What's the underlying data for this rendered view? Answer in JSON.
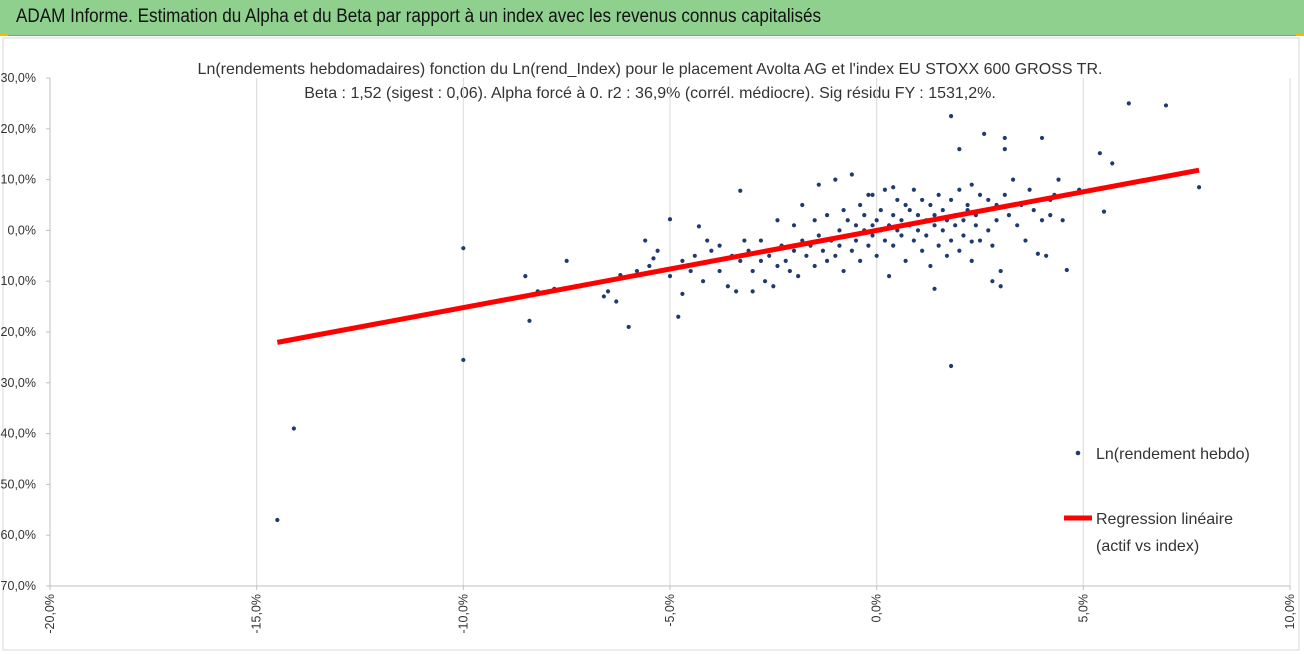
{
  "header": {
    "title": "ADAM Informe. Estimation du Alpha et du Beta par rapport à un index avec les revenus connus capitalisés",
    "accent": "#8fd08f"
  },
  "chart_data": {
    "type": "scatter",
    "title": "Ln(rendements hebdomadaires) fonction du Ln(rend_Index) pour le placement Avolta AG et l'index EU STOXX 600 GROSS TR.",
    "subtitle": "Beta : 1,52 (sigest : 0,06).  Alpha forcé à 0. r2 : 36,9% (corrél. médiocre). Sig résidu FY : 1531,2%.",
    "xlabel": "",
    "ylabel": "",
    "xlim": [
      -0.2,
      0.1
    ],
    "ylim": [
      -0.7,
      0.3
    ],
    "x_ticks": [
      -0.2,
      -0.15,
      -0.1,
      -0.05,
      0.0,
      0.05,
      0.1
    ],
    "x_tick_labels": [
      "-20,0%",
      "-15,0%",
      "-10,0%",
      "-5,0%",
      "0,0%",
      "5,0%",
      "10,0%"
    ],
    "y_ticks": [
      0.3,
      0.2,
      0.1,
      0.0,
      -0.1,
      -0.2,
      -0.3,
      -0.4,
      -0.5,
      -0.6,
      -0.7
    ],
    "y_tick_labels": [
      "30,0%",
      "20,0%",
      "10,0%",
      "0,0%",
      "-10,0%",
      "-20,0%",
      "-30,0%",
      "-40,0%",
      "-50,0%",
      "-60,0%",
      "-70,0%"
    ],
    "grid": "vertical",
    "legend_position": "right",
    "series": [
      {
        "name": "Ln(rendement hebdo)",
        "kind": "scatter",
        "color": "#1f3a6e",
        "points": [
          [
            -0.145,
            -0.57
          ],
          [
            -0.141,
            -0.39
          ],
          [
            -0.1,
            -0.255
          ],
          [
            -0.1,
            -0.035
          ],
          [
            -0.085,
            -0.09
          ],
          [
            -0.084,
            -0.178
          ],
          [
            -0.082,
            -0.12
          ],
          [
            -0.078,
            -0.115
          ],
          [
            -0.075,
            -0.06
          ],
          [
            -0.066,
            -0.13
          ],
          [
            -0.065,
            -0.12
          ],
          [
            -0.063,
            -0.14
          ],
          [
            -0.062,
            -0.088
          ],
          [
            -0.06,
            -0.19
          ],
          [
            -0.058,
            -0.08
          ],
          [
            -0.056,
            -0.02
          ],
          [
            -0.055,
            -0.07
          ],
          [
            -0.054,
            -0.055
          ],
          [
            -0.053,
            -0.04
          ],
          [
            -0.05,
            -0.09
          ],
          [
            -0.05,
            0.022
          ],
          [
            -0.048,
            -0.17
          ],
          [
            -0.047,
            -0.06
          ],
          [
            -0.047,
            -0.125
          ],
          [
            -0.045,
            -0.08
          ],
          [
            -0.044,
            -0.05
          ],
          [
            -0.043,
            0.008
          ],
          [
            -0.042,
            -0.1
          ],
          [
            -0.041,
            -0.02
          ],
          [
            -0.04,
            -0.06
          ],
          [
            -0.04,
            -0.04
          ],
          [
            -0.038,
            -0.03
          ],
          [
            -0.038,
            -0.08
          ],
          [
            -0.036,
            -0.11
          ],
          [
            -0.035,
            -0.05
          ],
          [
            -0.034,
            -0.12
          ],
          [
            -0.033,
            -0.06
          ],
          [
            -0.033,
            0.078
          ],
          [
            -0.032,
            -0.02
          ],
          [
            -0.031,
            -0.04
          ],
          [
            -0.03,
            -0.08
          ],
          [
            -0.03,
            -0.12
          ],
          [
            -0.028,
            -0.06
          ],
          [
            -0.028,
            -0.02
          ],
          [
            -0.027,
            -0.1
          ],
          [
            -0.026,
            -0.05
          ],
          [
            -0.025,
            -0.11
          ],
          [
            -0.024,
            0.02
          ],
          [
            -0.024,
            -0.07
          ],
          [
            -0.023,
            -0.03
          ],
          [
            -0.022,
            -0.06
          ],
          [
            -0.021,
            -0.08
          ],
          [
            -0.02,
            0.01
          ],
          [
            -0.02,
            -0.04
          ],
          [
            -0.019,
            -0.09
          ],
          [
            -0.018,
            -0.02
          ],
          [
            -0.018,
            0.05
          ],
          [
            -0.017,
            -0.05
          ],
          [
            -0.016,
            -0.03
          ],
          [
            -0.015,
            -0.07
          ],
          [
            -0.015,
            0.02
          ],
          [
            -0.014,
            0.09
          ],
          [
            -0.014,
            -0.01
          ],
          [
            -0.013,
            -0.04
          ],
          [
            -0.012,
            -0.06
          ],
          [
            -0.012,
            0.03
          ],
          [
            -0.011,
            -0.02
          ],
          [
            -0.01,
            0.1
          ],
          [
            -0.01,
            -0.05
          ],
          [
            -0.009,
            0.0
          ],
          [
            -0.009,
            -0.03
          ],
          [
            -0.008,
            0.04
          ],
          [
            -0.008,
            -0.08
          ],
          [
            -0.007,
            -0.01
          ],
          [
            -0.007,
            0.02
          ],
          [
            -0.006,
            0.11
          ],
          [
            -0.006,
            -0.04
          ],
          [
            -0.005,
            0.01
          ],
          [
            -0.005,
            -0.02
          ],
          [
            -0.004,
            0.05
          ],
          [
            -0.004,
            -0.06
          ],
          [
            -0.003,
            0.0
          ],
          [
            -0.003,
            0.03
          ],
          [
            -0.002,
            -0.03
          ],
          [
            -0.002,
            0.07
          ],
          [
            -0.001,
            0.01
          ],
          [
            -0.001,
            -0.01
          ],
          [
            0.0,
            0.02
          ],
          [
            0.0,
            -0.05
          ],
          [
            0.001,
            0.0
          ],
          [
            0.001,
            0.04
          ],
          [
            0.002,
            -0.02
          ],
          [
            0.002,
            0.08
          ],
          [
            0.003,
            0.01
          ],
          [
            0.003,
            -0.09
          ],
          [
            0.004,
            0.03
          ],
          [
            0.004,
            -0.03
          ],
          [
            0.005,
            0.06
          ],
          [
            0.005,
            0.0
          ],
          [
            0.006,
            -0.01
          ],
          [
            0.006,
            0.02
          ],
          [
            0.007,
            0.05
          ],
          [
            0.007,
            -0.06
          ],
          [
            0.008,
            0.01
          ],
          [
            0.008,
            0.04
          ],
          [
            0.009,
            -0.02
          ],
          [
            0.009,
            0.08
          ],
          [
            0.01,
            0.0
          ],
          [
            0.01,
            0.03
          ],
          [
            0.011,
            -0.04
          ],
          [
            0.011,
            0.06
          ],
          [
            0.012,
            0.02
          ],
          [
            0.012,
            -0.01
          ],
          [
            0.013,
            0.05
          ],
          [
            0.013,
            -0.07
          ],
          [
            0.014,
            0.01
          ],
          [
            0.014,
            0.03
          ],
          [
            0.015,
            -0.03
          ],
          [
            0.015,
            0.07
          ],
          [
            0.016,
            0.0
          ],
          [
            0.016,
            0.04
          ],
          [
            0.017,
            -0.05
          ],
          [
            0.017,
            0.02
          ],
          [
            0.018,
            0.06
          ],
          [
            0.018,
            -0.02
          ],
          [
            0.019,
            0.01
          ],
          [
            0.019,
            0.03
          ],
          [
            0.02,
            -0.04
          ],
          [
            0.02,
            0.08
          ],
          [
            0.021,
            0.02
          ],
          [
            0.021,
            -0.01
          ],
          [
            0.022,
            0.05
          ],
          [
            0.022,
            0.04
          ],
          [
            0.023,
            -0.06
          ],
          [
            0.023,
            0.09
          ],
          [
            0.024,
            0.01
          ],
          [
            0.024,
            0.03
          ],
          [
            0.025,
            -0.02
          ],
          [
            0.025,
            0.07
          ],
          [
            0.026,
            0.04
          ],
          [
            0.027,
            0.0
          ],
          [
            0.027,
            0.06
          ],
          [
            0.028,
            -0.03
          ],
          [
            0.029,
            0.05
          ],
          [
            0.029,
            0.02
          ],
          [
            0.03,
            -0.08
          ],
          [
            0.031,
            0.07
          ],
          [
            0.032,
            0.03
          ],
          [
            0.033,
            0.1
          ],
          [
            0.034,
            0.01
          ],
          [
            0.035,
            0.05
          ],
          [
            0.036,
            -0.02
          ],
          [
            0.037,
            0.08
          ],
          [
            0.038,
            0.04
          ],
          [
            0.04,
            0.06
          ],
          [
            0.041,
            -0.05
          ],
          [
            0.042,
            0.03
          ],
          [
            0.043,
            0.07
          ],
          [
            0.044,
            0.1
          ],
          [
            0.045,
            0.02
          ],
          [
            0.018,
            0.225
          ],
          [
            0.02,
            0.16
          ],
          [
            0.018,
            -0.267
          ],
          [
            0.026,
            0.19
          ],
          [
            0.031,
            0.182
          ],
          [
            0.031,
            0.16
          ],
          [
            0.04,
            0.182
          ],
          [
            0.042,
            0.06
          ],
          [
            0.046,
            -0.078
          ],
          [
            0.049,
            0.08
          ],
          [
            0.054,
            0.152
          ],
          [
            0.057,
            0.132
          ],
          [
            0.061,
            0.25
          ],
          [
            0.07,
            0.246
          ],
          [
            0.078,
            0.085
          ],
          [
            0.055,
            0.037
          ],
          [
            0.03,
            -0.11
          ],
          [
            0.028,
            -0.1
          ],
          [
            0.04,
            0.02
          ],
          [
            0.039,
            -0.046
          ],
          [
            0.023,
            -0.022
          ],
          [
            0.014,
            -0.115
          ],
          [
            -0.001,
            0.07
          ],
          [
            0.004,
            0.085
          ]
        ]
      },
      {
        "name": "Regression linéaire (actif vs index)",
        "legend_lines": [
          "Regression linéaire",
          "(actif vs index)"
        ],
        "kind": "line",
        "color": "#ff0000",
        "beta": 1.52,
        "x_range": [
          -0.145,
          0.078
        ]
      }
    ]
  }
}
